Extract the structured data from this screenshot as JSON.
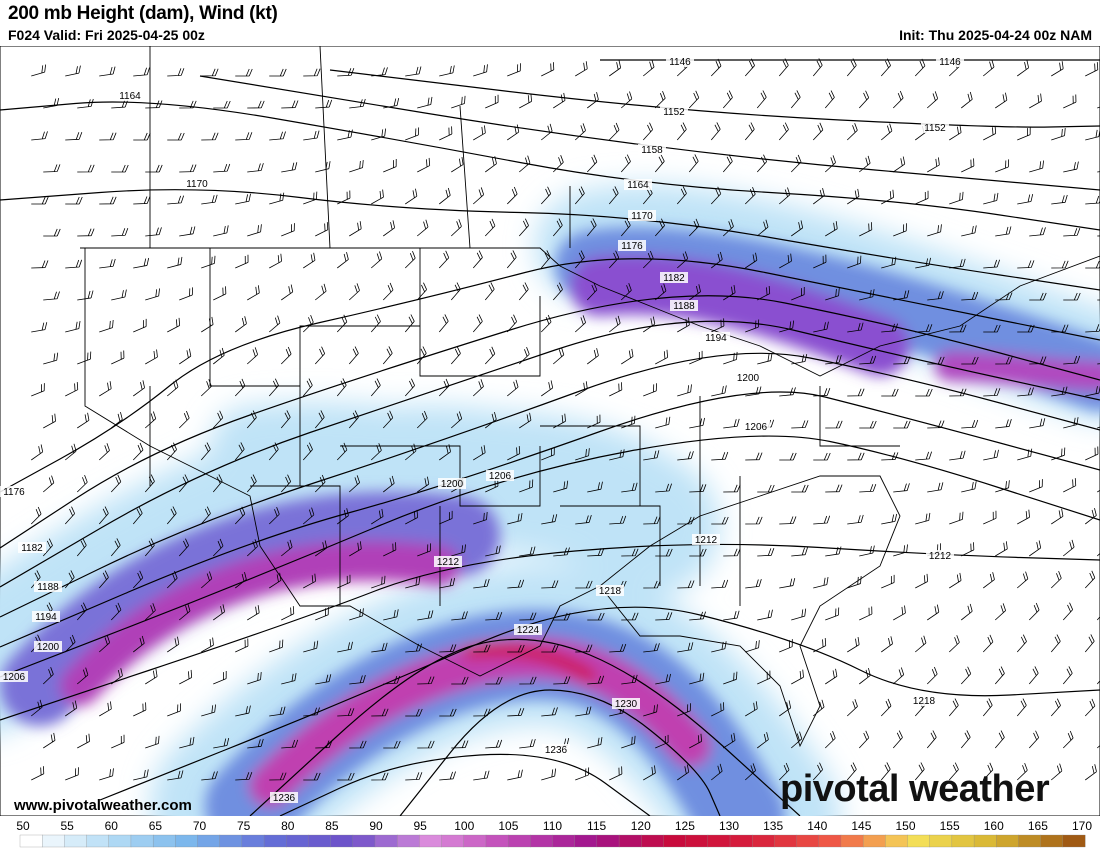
{
  "header": {
    "title": "200 mb Height (dam), Wind (kt)",
    "valid": "F024 Valid: Fri 2025-04-25 00z",
    "init": "Init: Thu 2025-04-24 00z NAM"
  },
  "map": {
    "contour_labels": [
      "1146",
      "1146",
      "1152",
      "1152",
      "1158",
      "1164",
      "1164",
      "1170",
      "1170",
      "1176",
      "1176",
      "1182",
      "1182",
      "1188",
      "1188",
      "1194",
      "1194",
      "1200",
      "1200",
      "1200",
      "1206",
      "1206",
      "1206",
      "1212",
      "1212",
      "1212",
      "1218",
      "1218",
      "1224",
      "1230",
      "1236",
      "1236"
    ],
    "wind_colors": {
      "light": "#bfe3f7",
      "blue": "#6f8fe0",
      "purple": "#8a4fd0",
      "magenta": "#c040b0",
      "red": "#d0103a"
    }
  },
  "footer": {
    "url": "www.pivotalweather.com",
    "brand": "pivotal weather"
  },
  "colorbar": {
    "ticks": [
      "50",
      "55",
      "60",
      "65",
      "70",
      "75",
      "80",
      "85",
      "90",
      "95",
      "100",
      "105",
      "110",
      "115",
      "120",
      "125",
      "130",
      "135",
      "140",
      "145",
      "150",
      "155",
      "160",
      "165",
      "170"
    ],
    "min": 50,
    "max": 170,
    "unit": "kt"
  }
}
